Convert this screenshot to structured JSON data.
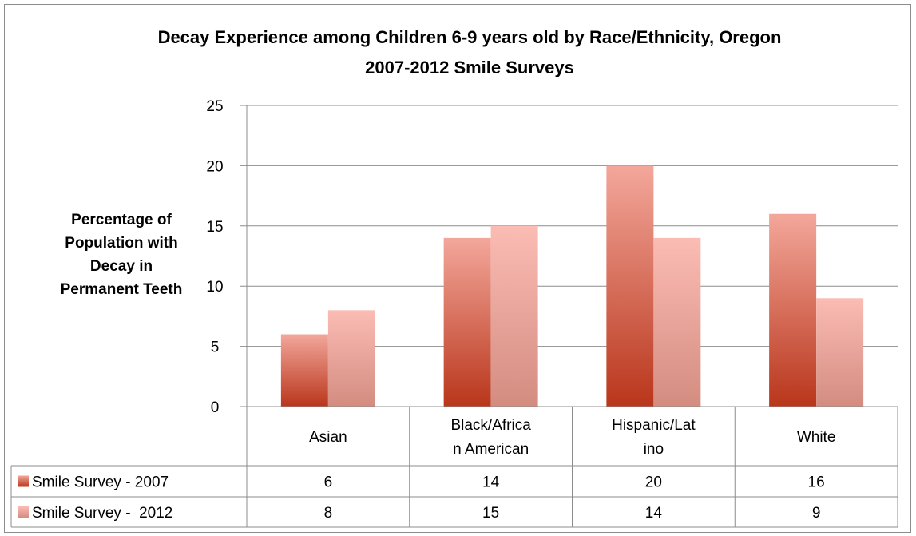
{
  "chart_data": {
    "type": "bar",
    "title": "Decay Experience among Children 6-9 years old by Race/Ethnicity, Oregon",
    "subtitle": "2007-2012 Smile Surveys",
    "ylabel": [
      "Percentage of",
      "Population with",
      "Decay in",
      "Permanent Teeth"
    ],
    "ylim": [
      0,
      25
    ],
    "yticks": [
      0,
      5,
      10,
      15,
      20,
      25
    ],
    "grid": true,
    "categories": [
      [
        "Asian"
      ],
      [
        "Black/Africa",
        "n American"
      ],
      [
        "Hispanic/Lat",
        "ino"
      ],
      [
        "White"
      ]
    ],
    "series": [
      {
        "name": "Smile Survey - 2007",
        "values": [
          6,
          14,
          20,
          16
        ],
        "color_top": "#f3a79b",
        "color_bottom": "#b9361b"
      },
      {
        "name": "Smile Survey -  2012",
        "values": [
          8,
          15,
          14,
          9
        ],
        "color_top": "#fbbcb4",
        "color_bottom": "#d48c80"
      }
    ],
    "legend": "data-table"
  }
}
